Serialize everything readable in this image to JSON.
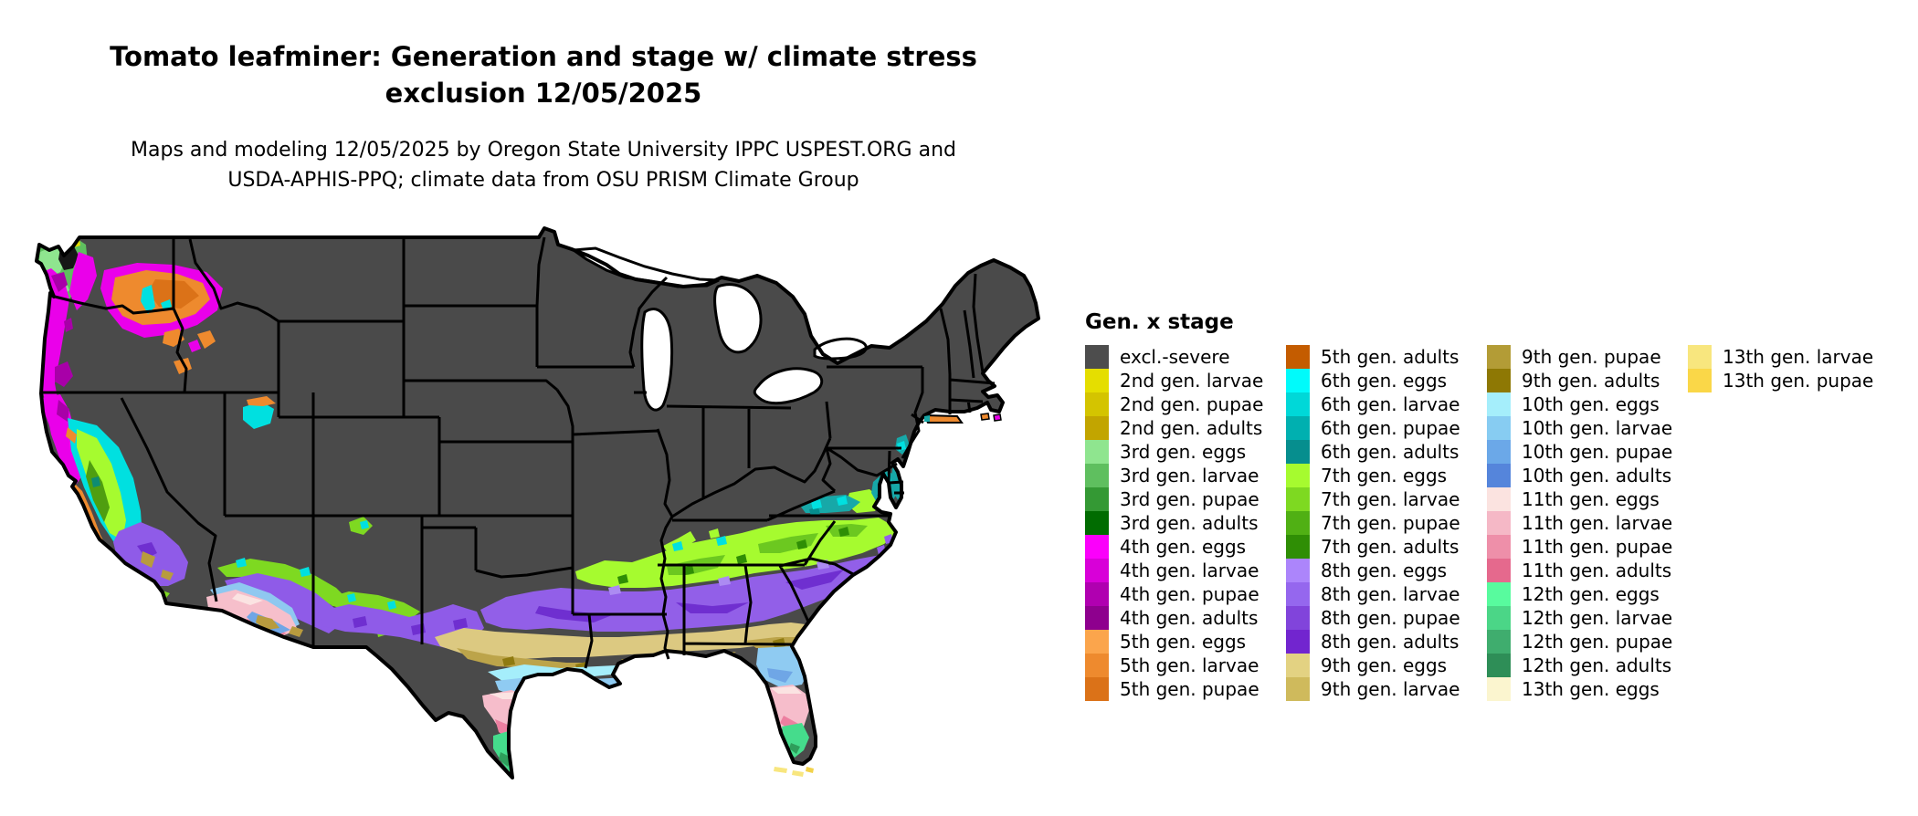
{
  "title": {
    "line1": "Tomato leafminer: Generation and stage w/ climate stress",
    "line2": "exclusion 12/05/2025"
  },
  "subtitle": {
    "line1": "Maps and modeling 12/05/2025 by Oregon State University IPPC USPEST.ORG and",
    "line2": "USDA-APHIS-PPQ; climate data from OSU PRISM Climate Group"
  },
  "legend": {
    "title": "Gen. x stage",
    "columns": [
      [
        {
          "label": "excl.-severe",
          "color": "#4D4D4D"
        },
        {
          "label": "2nd gen. larvae",
          "color": "#E5DE00"
        },
        {
          "label": "2nd gen. pupae",
          "color": "#D4C400"
        },
        {
          "label": "2nd gen. adults",
          "color": "#C2A500"
        },
        {
          "label": "3rd gen. eggs",
          "color": "#8FE58F"
        },
        {
          "label": "3rd gen. larvae",
          "color": "#5FBF5F"
        },
        {
          "label": "3rd gen. pupae",
          "color": "#349934"
        },
        {
          "label": "3rd gen. adults",
          "color": "#016C01"
        },
        {
          "label": "4th gen. eggs",
          "color": "#FB00FB"
        },
        {
          "label": "4th gen. larvae",
          "color": "#D800D8"
        },
        {
          "label": "4th gen. pupae",
          "color": "#B000B0"
        },
        {
          "label": "4th gen. adults",
          "color": "#8E008E"
        },
        {
          "label": "5th gen. eggs",
          "color": "#FBA54C"
        },
        {
          "label": "5th gen. larvae",
          "color": "#EE8A2E"
        },
        {
          "label": "5th gen. pupae",
          "color": "#DB7218"
        }
      ],
      [
        {
          "label": "5th gen. adults",
          "color": "#C45C00"
        },
        {
          "label": "6th gen. eggs",
          "color": "#00FBFB"
        },
        {
          "label": "6th gen. larvae",
          "color": "#00D8D8"
        },
        {
          "label": "6th gen. pupae",
          "color": "#00B0B0"
        },
        {
          "label": "6th gen. adults",
          "color": "#068E8E"
        },
        {
          "label": "7th gen. eggs",
          "color": "#A6FB2F"
        },
        {
          "label": "7th gen. larvae",
          "color": "#7ED921"
        },
        {
          "label": "7th gen. pupae",
          "color": "#50B014"
        },
        {
          "label": "7th gen. adults",
          "color": "#2F8E05"
        },
        {
          "label": "8th gen. eggs",
          "color": "#AC85FB"
        },
        {
          "label": "8th gen. larvae",
          "color": "#9567EE"
        },
        {
          "label": "8th gen. pupae",
          "color": "#8144DB"
        },
        {
          "label": "8th gen. adults",
          "color": "#7225CF"
        },
        {
          "label": "9th gen. eggs",
          "color": "#E3D282"
        },
        {
          "label": "9th gen. larvae",
          "color": "#CFBA5C"
        }
      ],
      [
        {
          "label": "9th gen. pupae",
          "color": "#B39C36"
        },
        {
          "label": "9th gen. adults",
          "color": "#8E7804"
        },
        {
          "label": "10th gen. eggs",
          "color": "#A5EEFB"
        },
        {
          "label": "10th gen. larvae",
          "color": "#87CCF2"
        },
        {
          "label": "10th gen. pupae",
          "color": "#6BA8E8"
        },
        {
          "label": "10th gen. adults",
          "color": "#5585DB"
        },
        {
          "label": "11th gen. eggs",
          "color": "#FBE3E0"
        },
        {
          "label": "11th gen. larvae",
          "color": "#F5B8C6"
        },
        {
          "label": "11th gen. pupae",
          "color": "#EE8FA9"
        },
        {
          "label": "11th gen. adults",
          "color": "#E5698D"
        },
        {
          "label": "12th gen. eggs",
          "color": "#58FB9E"
        },
        {
          "label": "12th gen. larvae",
          "color": "#4BD687"
        },
        {
          "label": "12th gen. pupae",
          "color": "#3FAD6E"
        },
        {
          "label": "12th gen. adults",
          "color": "#2E8E57"
        },
        {
          "label": "13th gen. eggs",
          "color": "#FBF5CF"
        }
      ],
      [
        {
          "label": "13th gen. larvae",
          "color": "#F8E67E"
        },
        {
          "label": "13th gen. pupae",
          "color": "#FAD748"
        }
      ]
    ]
  },
  "map": {
    "background_color": "#4A4A4A",
    "border_color": "#000000",
    "water_color": "#FFFFFF"
  }
}
